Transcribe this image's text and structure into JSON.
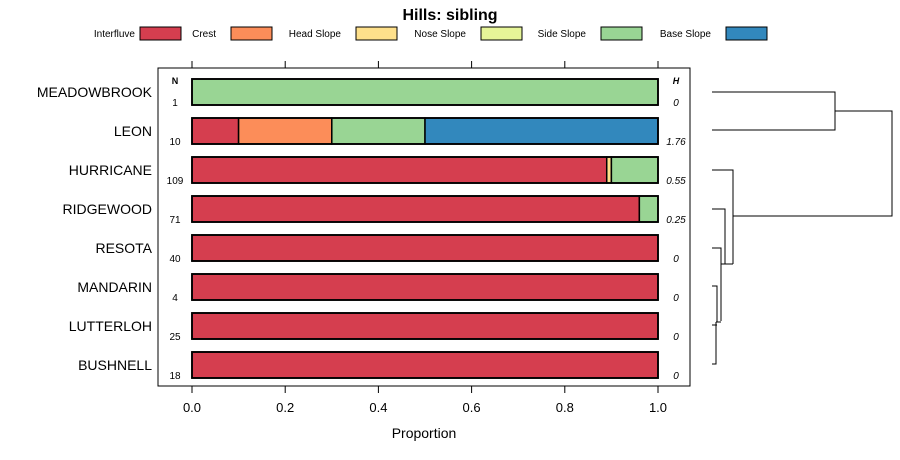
{
  "chart_data": {
    "type": "bar",
    "title": "Hills: sibling",
    "xlabel": "Proportion",
    "xlim": [
      0,
      1
    ],
    "x_ticks": [
      0,
      0.2,
      0.4,
      0.6,
      0.8,
      1
    ],
    "x_tick_labels": [
      "0.0",
      "0.2",
      "0.4",
      "0.6",
      "0.8",
      "1.0"
    ],
    "n_header": "N",
    "h_header": "H",
    "legend": [
      {
        "name": "Interfluve",
        "color": "#d53e4f"
      },
      {
        "name": "Crest",
        "color": "#fc8d59"
      },
      {
        "name": "Head Slope",
        "color": "#fee08b"
      },
      {
        "name": "Nose Slope",
        "color": "#e6f598"
      },
      {
        "name": "Side Slope",
        "color": "#99d594"
      },
      {
        "name": "Base Slope",
        "color": "#3288bd"
      }
    ],
    "categories": [
      "MEADOWBROOK",
      "LEON",
      "HURRICANE",
      "RIDGEWOOD",
      "RESOTA",
      "MANDARIN",
      "LUTTERLOH",
      "BUSHNELL"
    ],
    "n": [
      "1",
      "10",
      "109",
      "71",
      "40",
      "4",
      "25",
      "18"
    ],
    "h": [
      "0",
      "1.76",
      "0.55",
      "0.25",
      "0",
      "0",
      "0",
      "0"
    ],
    "series": [
      {
        "name": "Interfluve",
        "values": [
          0,
          0.1,
          0.89,
          0.96,
          1,
          1,
          1,
          1
        ]
      },
      {
        "name": "Crest",
        "values": [
          0,
          0.2,
          0,
          0,
          0,
          0,
          0,
          0
        ]
      },
      {
        "name": "Head Slope",
        "values": [
          0,
          0,
          0.01,
          0,
          0,
          0,
          0,
          0
        ]
      },
      {
        "name": "Nose Slope",
        "values": [
          0,
          0,
          0,
          0,
          0,
          0,
          0,
          0
        ]
      },
      {
        "name": "Side Slope",
        "values": [
          1,
          0.2,
          0.1,
          0.04,
          0,
          0,
          0,
          0
        ]
      },
      {
        "name": "Base Slope",
        "values": [
          0,
          0.5,
          0,
          0,
          0,
          0,
          0,
          0
        ]
      }
    ]
  }
}
